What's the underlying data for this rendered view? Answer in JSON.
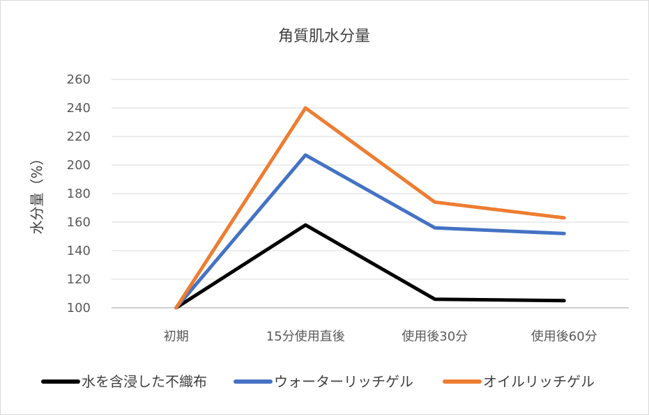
{
  "chart_data": {
    "type": "line",
    "title": "角質肌水分量",
    "xlabel": "",
    "ylabel": "水分量（%）",
    "categories": [
      "初期",
      "15分使用直後",
      "使用後30分",
      "使用後60分"
    ],
    "ylim": [
      100,
      260
    ],
    "yticks": [
      100,
      120,
      140,
      160,
      180,
      200,
      220,
      240,
      260
    ],
    "ytick_labels": [
      "100",
      "120",
      "140",
      "160",
      "180",
      "200",
      "220",
      "240",
      "260"
    ],
    "grid": true,
    "legend_position": "bottom",
    "series": [
      {
        "name": "水を含浸した不織布",
        "color": "#000000",
        "values": [
          100,
          158,
          106,
          105
        ]
      },
      {
        "name": "ウォーターリッチゲル",
        "color": "#4472C4",
        "values": [
          100,
          207,
          156,
          152
        ]
      },
      {
        "name": "オイルリッチゲル",
        "color": "#ED7D31",
        "values": [
          100,
          240,
          174,
          163
        ]
      }
    ]
  }
}
